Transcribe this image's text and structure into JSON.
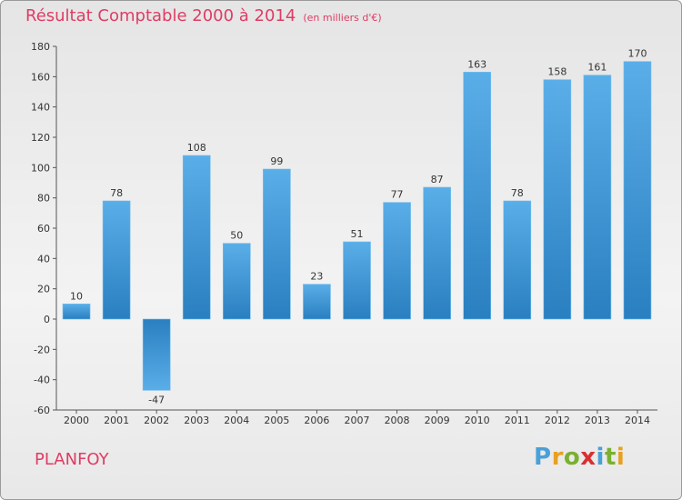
{
  "header": {
    "title": "Résultat Comptable 2000 à 2014",
    "subtitle": "(en milliers d'€)"
  },
  "footer": {
    "commune": "PLANFOY",
    "brand": "Proxiti"
  },
  "colors": {
    "title": "#e03c64",
    "bar_light": "#5aaee8",
    "bar_dark": "#2a7fc0",
    "brand_letters": [
      "#4aa0d8",
      "#e8a020",
      "#7ab030",
      "#d83030",
      "#4aa0d8",
      "#7ab030",
      "#e8a020"
    ]
  },
  "chart_data": {
    "type": "bar",
    "title": "Résultat Comptable 2000 à 2014",
    "subtitle": "(en milliers d'€)",
    "categories": [
      "2000",
      "2001",
      "2002",
      "2003",
      "2004",
      "2005",
      "2006",
      "2007",
      "2008",
      "2009",
      "2010",
      "2011",
      "2012",
      "2013",
      "2014"
    ],
    "values": [
      10,
      78,
      -47,
      108,
      50,
      99,
      23,
      51,
      77,
      87,
      163,
      78,
      158,
      161,
      170
    ],
    "ylim": [
      -60,
      180
    ],
    "yticks": [
      -60,
      -40,
      -20,
      0,
      20,
      40,
      60,
      80,
      100,
      120,
      140,
      160,
      180
    ],
    "grid": false,
    "data_labels": true
  }
}
